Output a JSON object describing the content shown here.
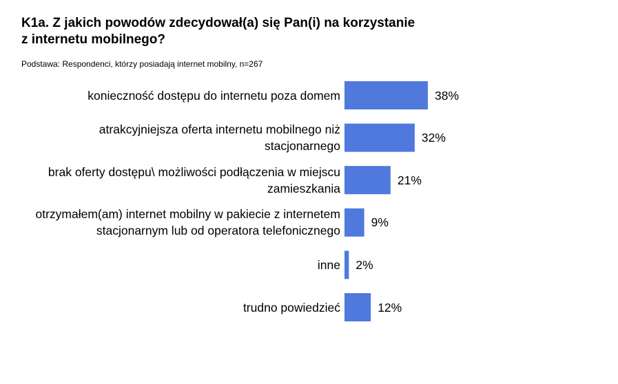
{
  "header": {
    "title_line1": "K1a. Z jakich powodów zdecydował(a) się Pan(i) na korzystanie",
    "title_line2": "z internetu mobilnego?",
    "base_note": "Podstawa: Respondenci, którzy posiadają internet mobilny, n=267"
  },
  "chart_data": {
    "type": "bar",
    "orientation": "horizontal",
    "title": "K1a. Z jakich powodów zdecydował(a) się Pan(i) na korzystanie z internetu mobilnego?",
    "subtitle": "Podstawa: Respondenci, którzy posiadają internet mobilny, n=267",
    "categories": [
      [
        "konieczność dostępu do internetu poza domem"
      ],
      [
        "atrakcyjniejsza oferta internetu mobilnego niż",
        "stacjonarnego"
      ],
      [
        "brak oferty dostępu\\ możliwości podłączenia w miejscu",
        "zamieszkania"
      ],
      [
        "otrzymałem(am) internet mobilny w pakiecie z internetem",
        "stacjonarnym lub od operatora telefonicznego"
      ],
      [
        "inne"
      ],
      [
        "trudno powiedzieć"
      ]
    ],
    "values": [
      38,
      32,
      21,
      9,
      2,
      12
    ],
    "value_labels": [
      "38%",
      "32%",
      "21%",
      "9%",
      "2%",
      "12%"
    ],
    "unit": "%",
    "xlim": [
      0,
      38
    ],
    "bar_color": "#4f79dc",
    "grid": false,
    "legend": "none"
  }
}
